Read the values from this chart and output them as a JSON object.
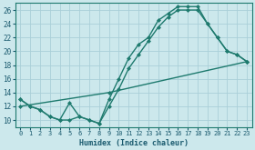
{
  "xlabel": "Humidex (Indice chaleur)",
  "background_color": "#cce8ec",
  "grid_color": "#aacfd8",
  "line_color": "#1e7a6e",
  "xlim": [
    -0.5,
    23.5
  ],
  "ylim": [
    9,
    27
  ],
  "xticks": [
    0,
    1,
    2,
    3,
    4,
    5,
    6,
    7,
    8,
    9,
    10,
    11,
    12,
    13,
    14,
    15,
    16,
    17,
    18,
    19,
    20,
    21,
    22,
    23
  ],
  "yticks": [
    10,
    12,
    14,
    16,
    18,
    20,
    22,
    24,
    26
  ],
  "curve1_x": [
    0,
    1,
    2,
    3,
    4,
    5,
    6,
    7,
    8,
    9,
    10,
    11,
    12,
    13,
    14,
    15,
    16,
    17,
    18,
    19,
    20,
    21,
    22,
    23
  ],
  "curve1_y": [
    13,
    12,
    11.5,
    10.5,
    10,
    12.5,
    10.5,
    10,
    9.5,
    13,
    16,
    19,
    21,
    22,
    24.5,
    25.5,
    26.5,
    26.5,
    26.5,
    24,
    22,
    20,
    19.5,
    18.5
  ],
  "curve2_x": [
    0,
    1,
    2,
    3,
    4,
    5,
    6,
    7,
    8,
    9,
    10,
    11,
    12,
    13,
    14,
    15,
    16,
    17,
    18,
    19,
    20,
    21,
    22,
    23
  ],
  "curve2_y": [
    13,
    12,
    11.5,
    10.5,
    10,
    10,
    10.5,
    10,
    9.5,
    12,
    14.5,
    17.5,
    19.5,
    21.5,
    23.5,
    25,
    26,
    26,
    26,
    24,
    22,
    20,
    19.5,
    18.5
  ],
  "curve3_x": [
    0,
    9,
    23
  ],
  "curve3_y": [
    12,
    14,
    18.5
  ],
  "marker_size": 2.5,
  "line_width": 1.0
}
